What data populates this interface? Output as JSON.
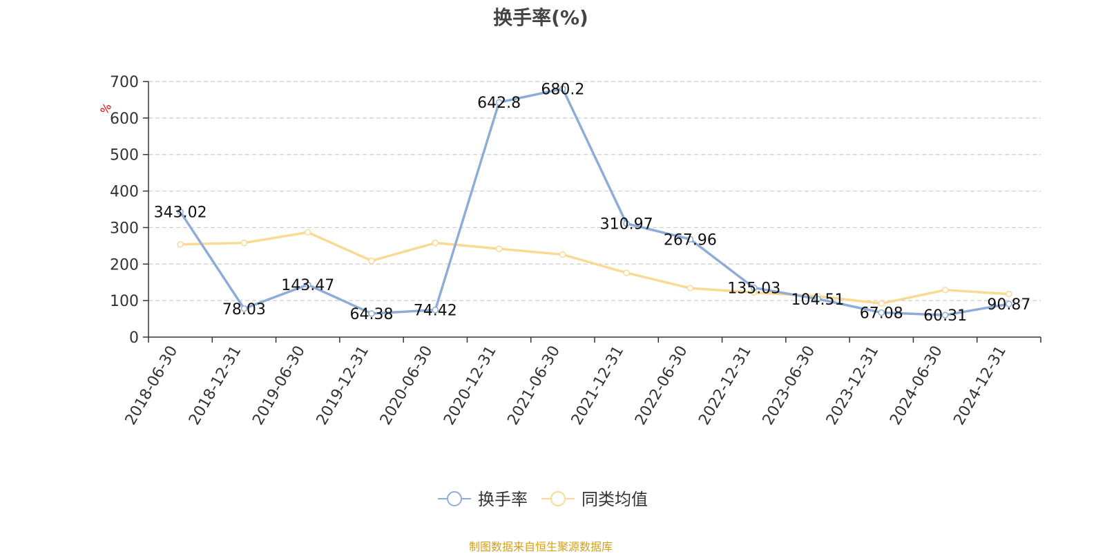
{
  "chart_data": {
    "type": "line",
    "title": "换手率(%)",
    "ylabel": "%",
    "xlabel": "",
    "ylim": [
      0,
      700
    ],
    "yticks": [
      0,
      100,
      200,
      300,
      400,
      500,
      600,
      700
    ],
    "grid": true,
    "legend_position": "bottom-center",
    "categories": [
      "2018-06-30",
      "2018-12-31",
      "2019-06-30",
      "2019-12-31",
      "2020-06-30",
      "2020-12-31",
      "2021-06-30",
      "2021-12-31",
      "2022-06-30",
      "2022-12-31",
      "2023-06-30",
      "2023-12-31",
      "2024-06-30",
      "2024-12-31"
    ],
    "series": [
      {
        "name": "换手率",
        "color": "#8eadd6",
        "show_labels": true,
        "values": [
          343.02,
          78.03,
          143.47,
          64.38,
          74.42,
          642.8,
          680.2,
          310.97,
          267.96,
          135.03,
          104.51,
          67.08,
          60.31,
          90.87
        ]
      },
      {
        "name": "同类均值",
        "color": "#fad994",
        "show_labels": false,
        "values": [
          254,
          258,
          287,
          209,
          258,
          242,
          226,
          176,
          134,
          122,
          112,
          92,
          129,
          118
        ]
      }
    ]
  },
  "source_text": "制图数据来自恒生聚源数据库"
}
